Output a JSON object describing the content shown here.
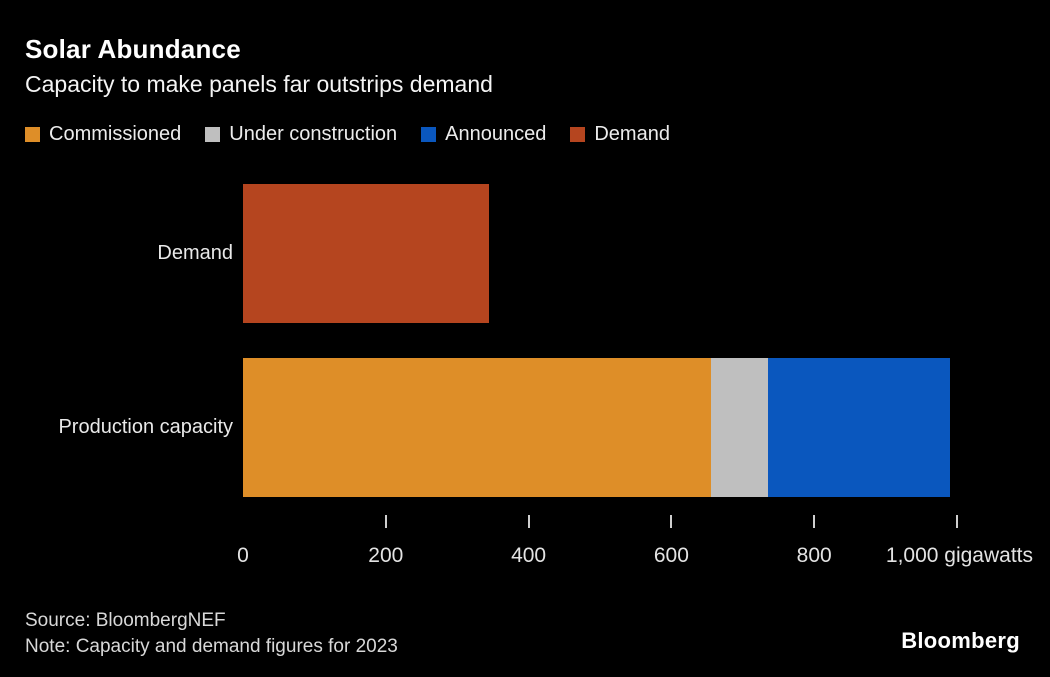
{
  "title": "Solar Abundance",
  "subtitle": "Capacity to make panels far outstrips demand",
  "legend": [
    {
      "name": "commissioned",
      "label": "Commissioned",
      "color": "#de8e28"
    },
    {
      "name": "under-construction",
      "label": "Under construction",
      "color": "#bfbfbf"
    },
    {
      "name": "announced",
      "label": "Announced",
      "color": "#0a57be"
    },
    {
      "name": "demand",
      "label": "Demand",
      "color": "#b5451f"
    }
  ],
  "chart_data": {
    "type": "bar",
    "orientation": "horizontal",
    "stacked": true,
    "title": "Solar Abundance",
    "subtitle": "Capacity to make panels far outstrips demand",
    "unit": "gigawatts",
    "categories": [
      "Demand",
      "Production capacity"
    ],
    "series": [
      {
        "name": "Commissioned",
        "color": "#de8e28",
        "values": [
          0,
          655
        ]
      },
      {
        "name": "Under construction",
        "color": "#bfbfbf",
        "values": [
          0,
          80
        ]
      },
      {
        "name": "Announced",
        "color": "#0a57be",
        "values": [
          0,
          255
        ]
      },
      {
        "name": "Demand",
        "color": "#b5451f",
        "values": [
          345,
          0
        ]
      }
    ],
    "xlim": [
      0,
      1000
    ],
    "xticks": [
      {
        "value": 0,
        "label": "0"
      },
      {
        "value": 200,
        "label": "200"
      },
      {
        "value": 400,
        "label": "400"
      },
      {
        "value": 600,
        "label": "600"
      },
      {
        "value": 800,
        "label": "800"
      },
      {
        "value": 1000,
        "label": "1,000",
        "suffix": " gigawatts"
      }
    ],
    "grid": false,
    "legend_position": "top"
  },
  "footer": {
    "source": "Source: BloombergNEF",
    "note": "Note: Capacity and demand figures for 2023",
    "brand": "Bloomberg"
  }
}
